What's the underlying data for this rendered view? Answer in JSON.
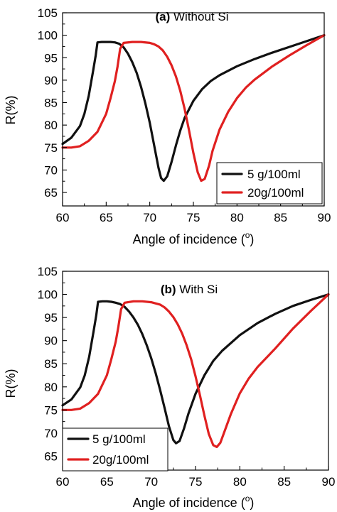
{
  "colors": {
    "series_1": "#111111",
    "series_2": "#e02020"
  },
  "chart_data": [
    {
      "type": "line",
      "title_letter": "(a)",
      "title_text": "Without Si",
      "xlabel_main": "Angle of incidence (",
      "xlabel_sup": "o",
      "xlabel_end": ")",
      "ylabel": "R(%)",
      "xlim": [
        60,
        90
      ],
      "ylim": [
        62,
        105
      ],
      "xticks": [
        60,
        65,
        70,
        75,
        80,
        85,
        90
      ],
      "yticks": [
        65,
        70,
        75,
        80,
        85,
        90,
        95,
        100,
        105
      ],
      "legend_position": "bottom-right",
      "series": [
        {
          "name": "5 g/100ml",
          "color": "#111111",
          "x": [
            60,
            61,
            62,
            62.5,
            63,
            63.5,
            63.8,
            64,
            64.5,
            65,
            65.5,
            66,
            66.5,
            67,
            67.5,
            68,
            68.5,
            69,
            69.5,
            70,
            70.5,
            71,
            71.3,
            71.6,
            72,
            72.5,
            73,
            73.5,
            74,
            75,
            76,
            77,
            78,
            80,
            82,
            84,
            86,
            88,
            90
          ],
          "y": [
            75.8,
            77.2,
            79.8,
            82.5,
            86.5,
            92,
            95.5,
            98.4,
            98.5,
            98.5,
            98.5,
            98.4,
            98.1,
            97.3,
            95.9,
            94,
            91.6,
            88.5,
            84.8,
            80.5,
            75.5,
            70.5,
            68.2,
            67.6,
            68.6,
            71.8,
            75.5,
            78.8,
            81.6,
            85.4,
            88,
            89.8,
            91.1,
            93.1,
            94.7,
            96.1,
            97.4,
            98.7,
            100
          ]
        },
        {
          "name": "20g/100ml",
          "color": "#e02020",
          "x": [
            60,
            61,
            62,
            63,
            64,
            65,
            65.5,
            66,
            66.3,
            66.6,
            67,
            68,
            69,
            70,
            70.5,
            71,
            71.5,
            72,
            72.5,
            73,
            73.5,
            74,
            74.5,
            75,
            75.5,
            75.9,
            76.3,
            76.8,
            77.2,
            78,
            79,
            80,
            81,
            82,
            84,
            86,
            88,
            90
          ],
          "y": [
            75,
            75,
            75.3,
            76.5,
            78.5,
            82.5,
            86,
            89.8,
            93,
            97,
            98.3,
            98.5,
            98.5,
            98.3,
            98,
            97.5,
            96.6,
            95.2,
            93.3,
            90.8,
            87.6,
            83.6,
            78.8,
            73.8,
            69.5,
            67.6,
            68,
            71,
            74.3,
            79,
            83,
            86,
            88.3,
            90.1,
            93,
            95.5,
            97.8,
            100
          ]
        }
      ]
    },
    {
      "type": "line",
      "title_letter": "(b)",
      "title_text": "With Si",
      "xlabel_main": "Angle of incidence (",
      "xlabel_sup": "o",
      "xlabel_end": ")",
      "ylabel": "R(%)",
      "xlim": [
        60,
        90
      ],
      "ylim": [
        62,
        105
      ],
      "xticks": [
        60,
        65,
        70,
        75,
        80,
        85,
        90
      ],
      "yticks": [
        65,
        70,
        75,
        80,
        85,
        90,
        95,
        100,
        105
      ],
      "legend_position": "bottom-left",
      "series": [
        {
          "name": "5 g/100ml",
          "color": "#111111",
          "x": [
            60,
            61,
            62,
            62.5,
            63,
            63.5,
            63.8,
            64,
            64.5,
            65,
            65.5,
            66,
            66.5,
            67,
            67.5,
            68,
            68.5,
            69,
            69.5,
            70,
            70.5,
            71,
            71.5,
            72,
            72.5,
            72.8,
            73.2,
            73.7,
            74.2,
            75,
            76,
            77,
            78,
            80,
            82,
            84,
            86,
            88,
            90
          ],
          "y": [
            76,
            77.3,
            79.9,
            82.5,
            86.5,
            92,
            95.5,
            98.4,
            98.5,
            98.5,
            98.4,
            98.2,
            97.9,
            97.3,
            96.3,
            95,
            93.4,
            91.4,
            89,
            86.2,
            83,
            79.4,
            75.5,
            71.5,
            68.5,
            67.8,
            68.3,
            71,
            74.2,
            78.5,
            82.5,
            85.6,
            87.8,
            91.2,
            93.8,
            95.8,
            97.5,
            98.8,
            100
          ]
        },
        {
          "name": "20g/100ml",
          "color": "#e02020",
          "x": [
            60,
            61,
            62,
            63,
            64,
            65,
            65.5,
            66,
            66.3,
            66.6,
            67,
            68,
            69,
            70,
            71,
            71.5,
            72,
            72.5,
            73,
            73.5,
            74,
            74.5,
            75,
            75.5,
            76,
            76.5,
            77,
            77.4,
            77.8,
            78.3,
            79,
            80,
            81,
            82,
            84,
            86,
            88,
            90
          ],
          "y": [
            75,
            75,
            75.3,
            76.5,
            78.5,
            82.5,
            86,
            89.8,
            93,
            96.8,
            98.2,
            98.5,
            98.5,
            98.3,
            97.8,
            97.2,
            96.3,
            95.1,
            93.5,
            91.5,
            89,
            86,
            82.3,
            78.2,
            73.8,
            69.8,
            67.4,
            67,
            67.9,
            70.5,
            74.2,
            78.6,
            81.8,
            84.3,
            88.3,
            92.6,
            96.4,
            100
          ]
        }
      ]
    }
  ]
}
